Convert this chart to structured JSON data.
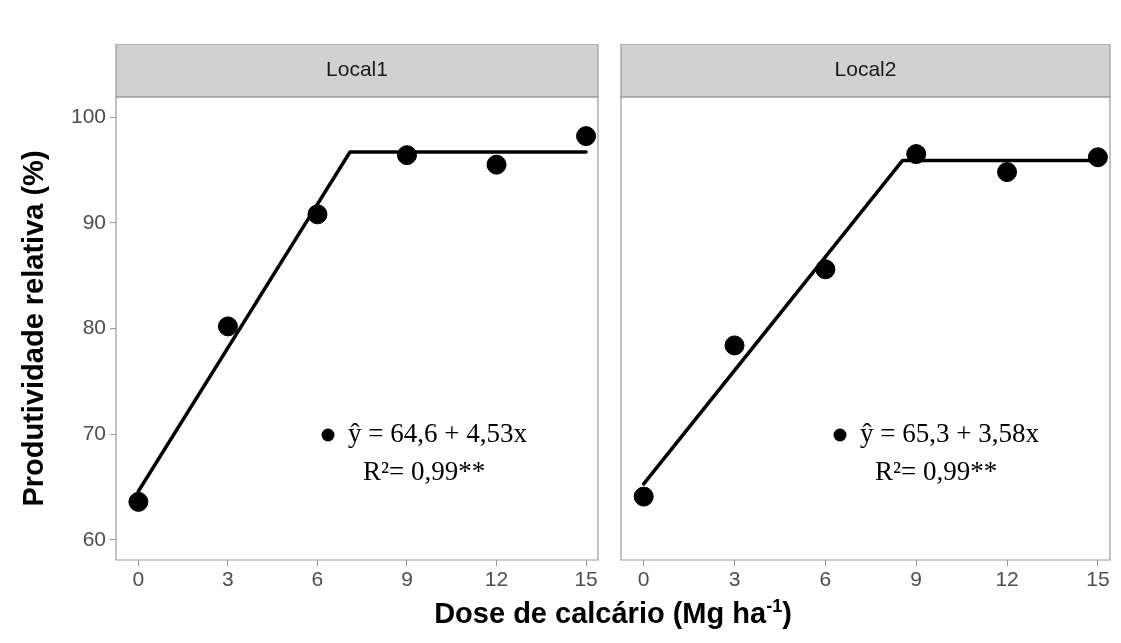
{
  "chart_data": [
    {
      "type": "scatter",
      "title": "Local1",
      "xlabel": "Dose de calcário (Mg ha$^{-1}$)",
      "ylabel": "Produtividade relativa (%)",
      "xlim": [
        -0.75,
        15.4
      ],
      "xticks": [
        0,
        3,
        6,
        9,
        12,
        15
      ],
      "ylim": [
        58.1,
        101.9
      ],
      "yticks": [
        60,
        70,
        80,
        90,
        100
      ],
      "grid": false,
      "legend": "bottom right",
      "series": [
        {
          "name": "ŷ = 64,6 + 4,53x",
          "color": "#000000",
          "marker": "circle",
          "x": [
            0,
            3,
            6,
            9,
            12,
            15
          ],
          "values": [
            63.6,
            80.2,
            90.8,
            96.4,
            95.5,
            98.2
          ]
        },
        {
          "type": "line",
          "color": "#000000",
          "marker": "none",
          "x": [
            0,
            7.09,
            15
          ],
          "values": [
            64.6,
            96.7,
            96.7
          ]
        }
      ],
      "annotations": [
        "R²= 0,99**"
      ]
    },
    {
      "type": "scatter",
      "title": "Local2",
      "xlim": [
        -0.75,
        15.4
      ],
      "xticks": [
        0,
        3,
        6,
        9,
        12,
        15
      ],
      "ylim": [
        58.1,
        101.9
      ],
      "yticks": [
        60,
        70,
        80,
        90,
        100
      ],
      "tick_labels": "x",
      "grid": false,
      "legend": "bottom right",
      "series": [
        {
          "name": "ŷ = 65,3 + 3,58x",
          "color": "#000000",
          "marker": "circle",
          "x": [
            0,
            3,
            6,
            9,
            12,
            15
          ],
          "values": [
            64.1,
            78.4,
            85.6,
            96.5,
            94.8,
            96.2
          ]
        },
        {
          "type": "line",
          "color": "#000000",
          "marker": "none",
          "x": [
            0,
            8.55,
            15
          ],
          "values": [
            65.3,
            95.9,
            95.9
          ]
        }
      ],
      "annotations": [
        "R²= 0,99**"
      ]
    }
  ]
}
